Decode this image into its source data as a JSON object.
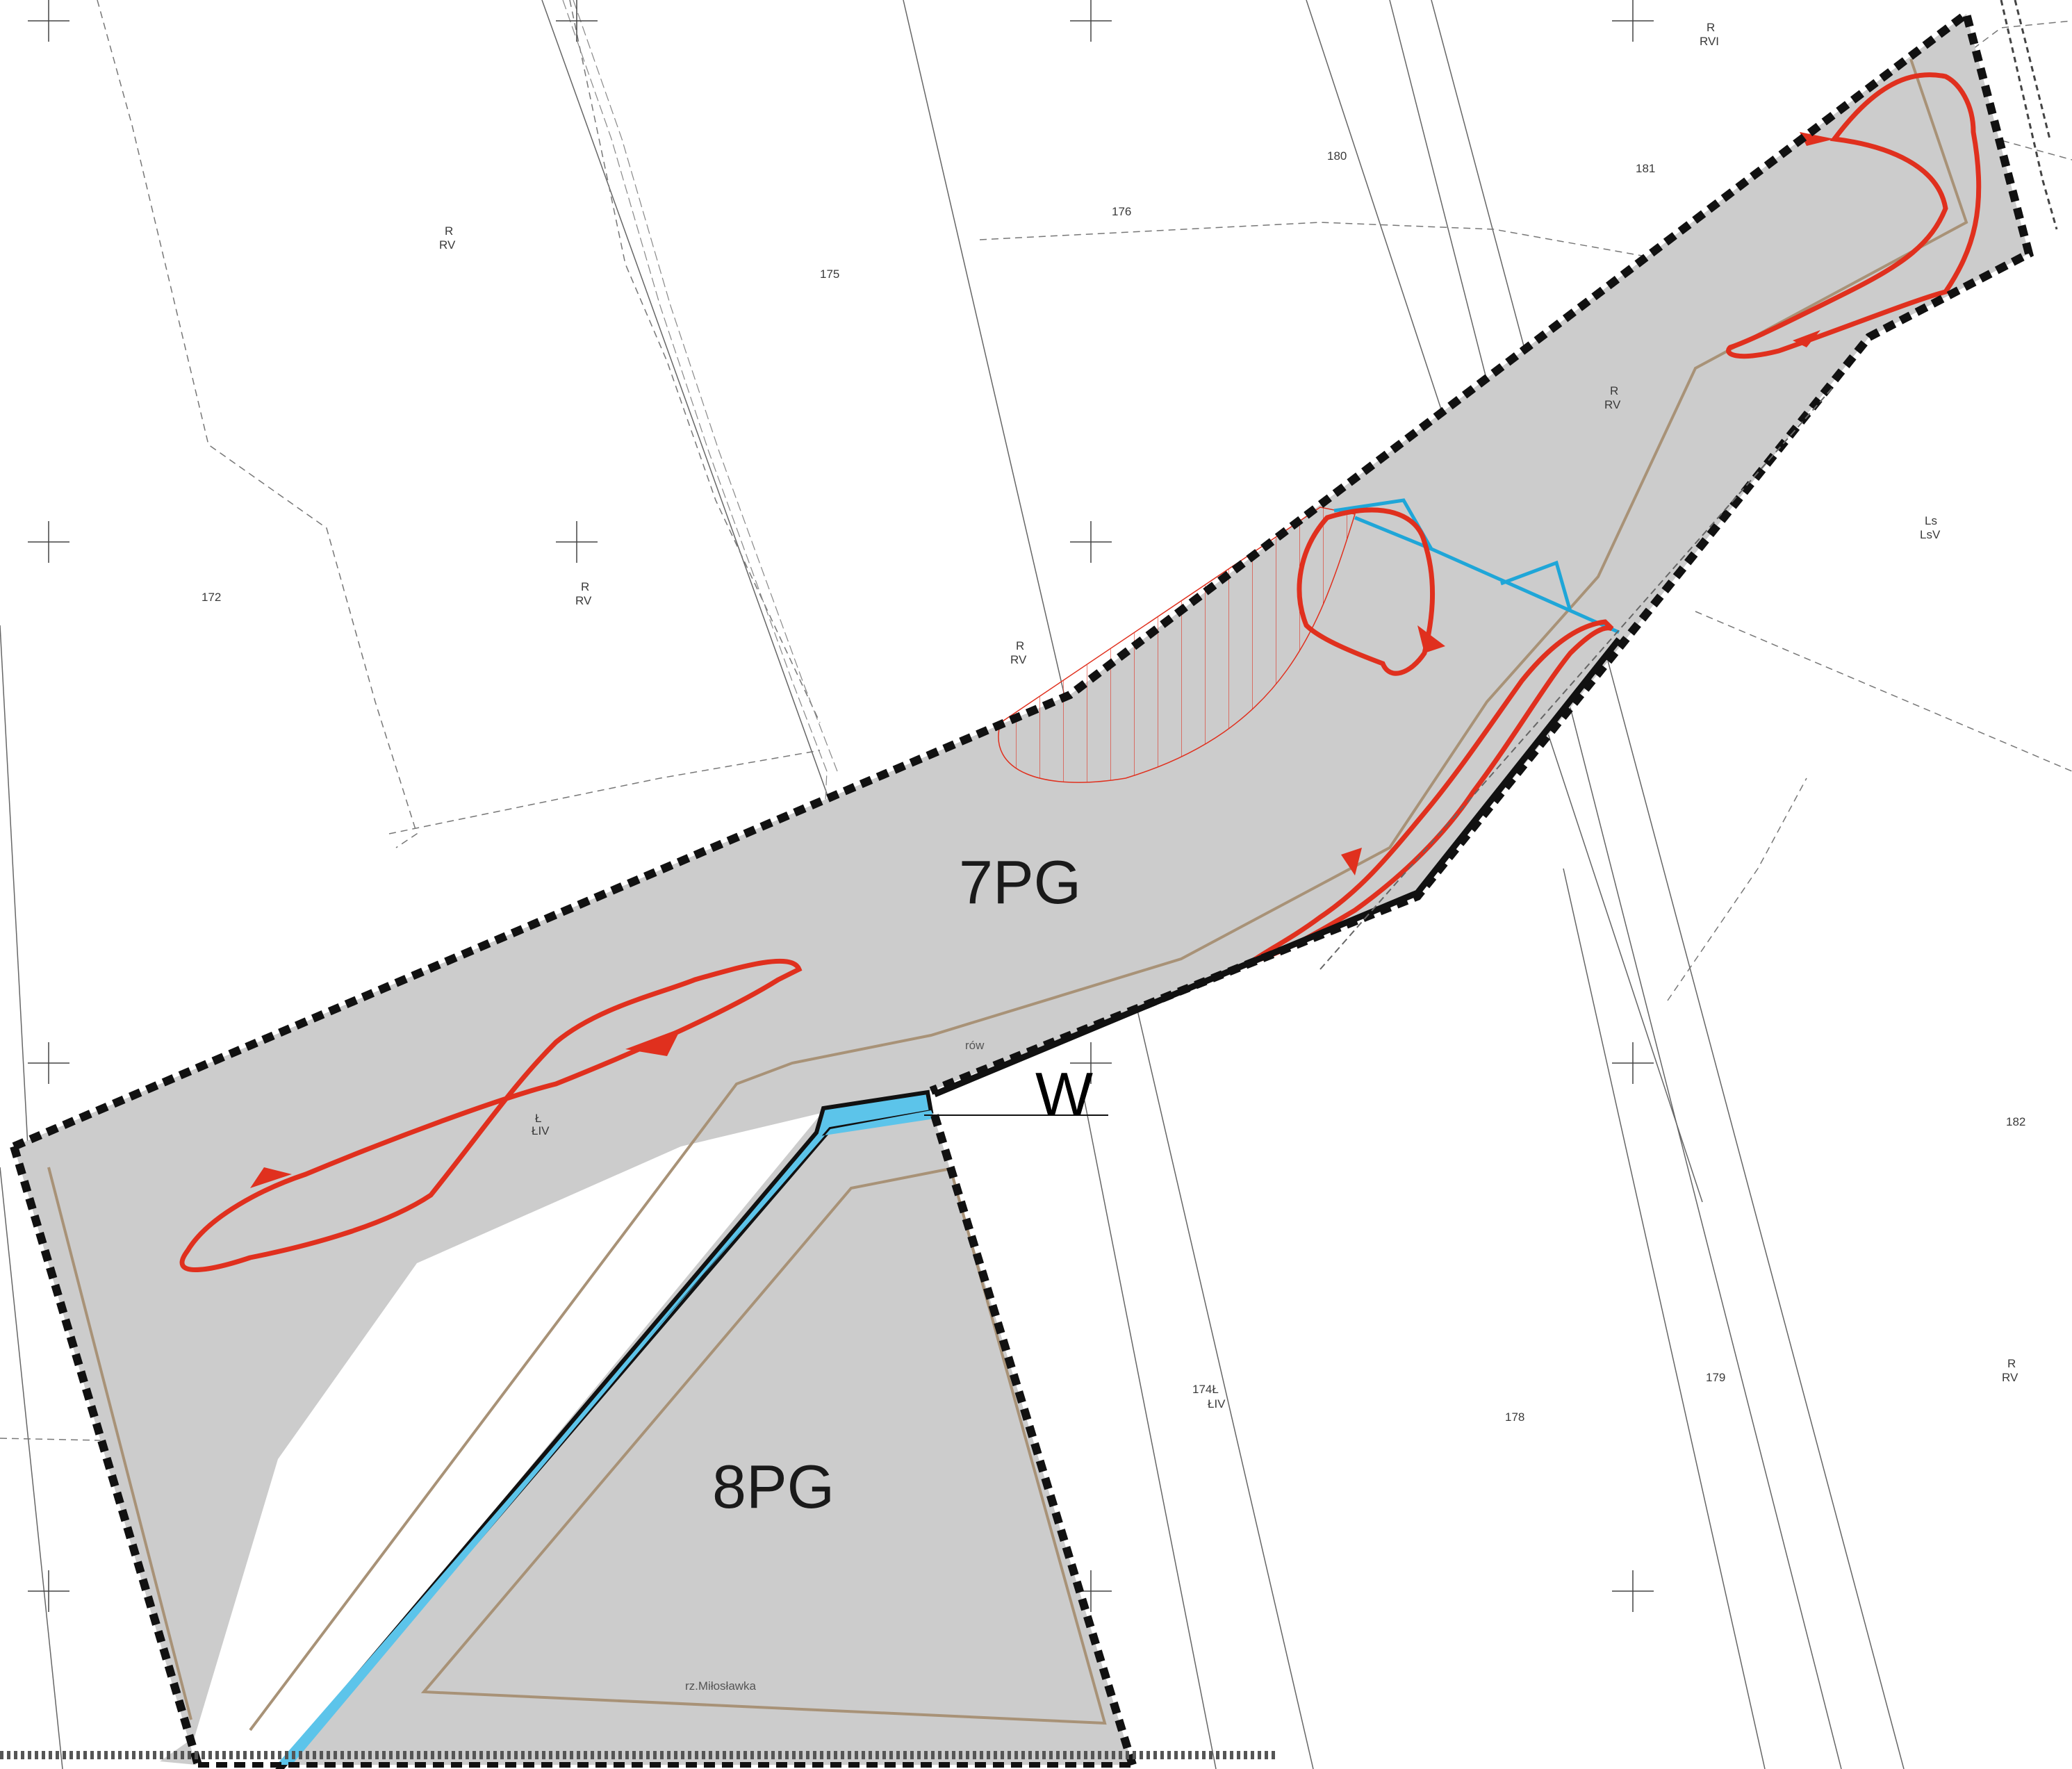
{
  "map": {
    "zones": [
      {
        "id": "7PG",
        "label": "7PG"
      },
      {
        "id": "8PG",
        "label": "8PG"
      },
      {
        "id": "W",
        "label": "W"
      }
    ],
    "parcels": [
      "172",
      "175",
      "176",
      "180",
      "181",
      "182",
      "174Ł",
      "178",
      "179"
    ],
    "soil_labels": [
      {
        "line1": "R",
        "line2": "RV"
      },
      {
        "line1": "R",
        "line2": "RVI"
      },
      {
        "line1": "Ls",
        "line2": "LsV"
      },
      {
        "line1": "Ł",
        "line2": "ŁIV"
      }
    ],
    "features": {
      "ditch": "rów",
      "river": "rz.Miłosławka",
      "parcel_174_class": "ŁIV"
    },
    "colors": {
      "zone_fill": "#cccccc",
      "boundary": "#111111",
      "red_outline": "#e0301e",
      "water_blue": "#1fa6d8",
      "water_fill": "#5cc4ea",
      "tan_line": "#a89277",
      "parcel_line": "#666666"
    }
  }
}
